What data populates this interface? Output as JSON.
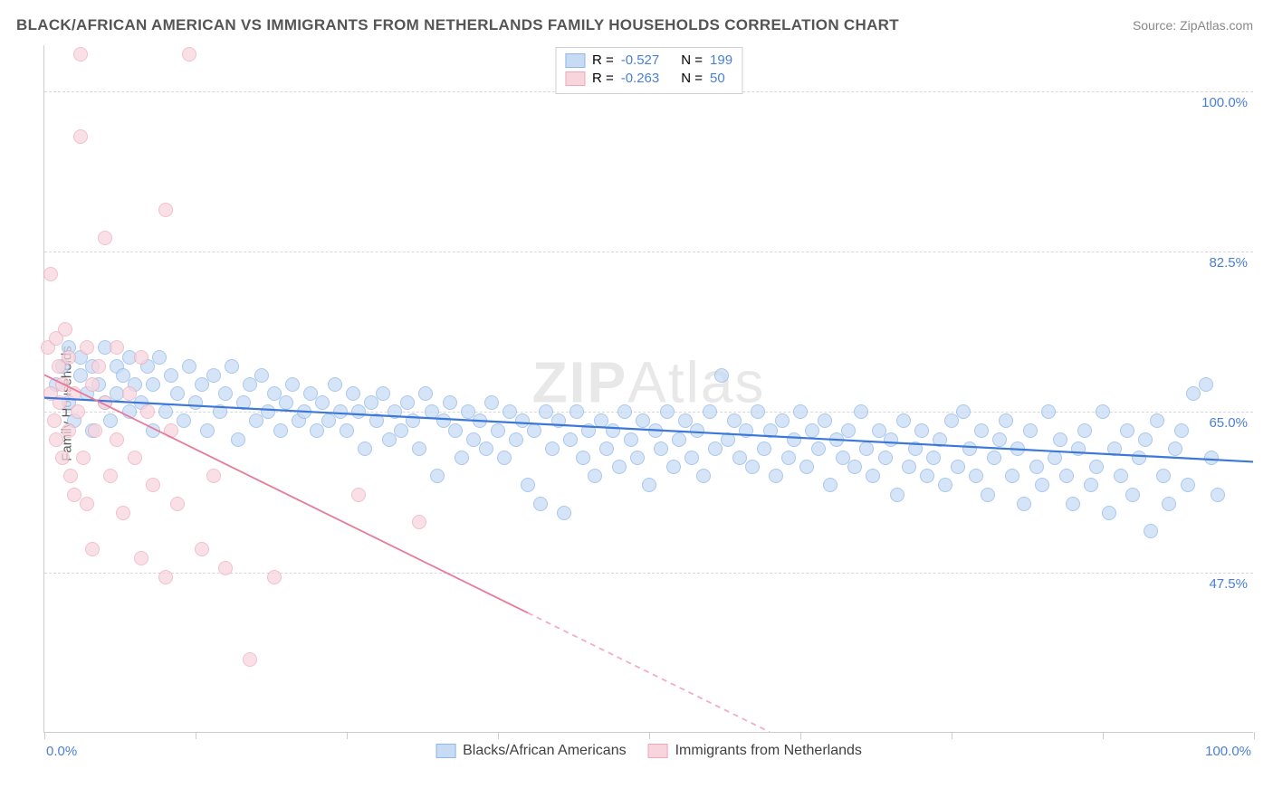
{
  "title": "BLACK/AFRICAN AMERICAN VS IMMIGRANTS FROM NETHERLANDS FAMILY HOUSEHOLDS CORRELATION CHART",
  "source": "Source: ZipAtlas.com",
  "ylabel": "Family Households",
  "watermark_bold": "ZIP",
  "watermark_light": "Atlas",
  "chart": {
    "type": "scatter",
    "xlim": [
      0,
      100
    ],
    "ylim": [
      30,
      105
    ],
    "xtick_positions": [
      0,
      12.5,
      25,
      37.5,
      50,
      62.5,
      75,
      87.5,
      100
    ],
    "xtick_labels": {
      "0": "0.0%",
      "100": "100.0%"
    },
    "ytick_positions": [
      47.5,
      65.0,
      82.5,
      100.0
    ],
    "ytick_labels": [
      "47.5%",
      "65.0%",
      "82.5%",
      "100.0%"
    ],
    "tick_label_color": "#4a7fd6",
    "grid_color": "#d8d8d8",
    "axis_color": "#cccccc",
    "background_color": "#ffffff",
    "marker_radius": 8,
    "marker_stroke_width": 1.5,
    "series": [
      {
        "name": "Blacks/African Americans",
        "fill": "#c7dbf5",
        "stroke": "#8fb6e8",
        "opacity": 0.75,
        "R": -0.527,
        "N": 199,
        "trend": {
          "x1": 0,
          "y1": 66.5,
          "x2": 100,
          "y2": 59.5,
          "color": "#3b78d8",
          "width": 2.2
        },
        "points": [
          [
            1,
            68
          ],
          [
            1.5,
            70
          ],
          [
            2,
            66
          ],
          [
            2,
            72
          ],
          [
            2.5,
            64
          ],
          [
            3,
            69
          ],
          [
            3,
            71
          ],
          [
            3.5,
            67
          ],
          [
            4,
            70
          ],
          [
            4,
            63
          ],
          [
            4.5,
            68
          ],
          [
            5,
            66
          ],
          [
            5,
            72
          ],
          [
            5.5,
            64
          ],
          [
            6,
            70
          ],
          [
            6,
            67
          ],
          [
            6.5,
            69
          ],
          [
            7,
            65
          ],
          [
            7,
            71
          ],
          [
            7.5,
            68
          ],
          [
            8,
            66
          ],
          [
            8.5,
            70
          ],
          [
            9,
            63
          ],
          [
            9,
            68
          ],
          [
            9.5,
            71
          ],
          [
            10,
            65
          ],
          [
            10.5,
            69
          ],
          [
            11,
            67
          ],
          [
            11.5,
            64
          ],
          [
            12,
            70
          ],
          [
            12.5,
            66
          ],
          [
            13,
            68
          ],
          [
            13.5,
            63
          ],
          [
            14,
            69
          ],
          [
            14.5,
            65
          ],
          [
            15,
            67
          ],
          [
            15.5,
            70
          ],
          [
            16,
            62
          ],
          [
            16.5,
            66
          ],
          [
            17,
            68
          ],
          [
            17.5,
            64
          ],
          [
            18,
            69
          ],
          [
            18.5,
            65
          ],
          [
            19,
            67
          ],
          [
            19.5,
            63
          ],
          [
            20,
            66
          ],
          [
            20.5,
            68
          ],
          [
            21,
            64
          ],
          [
            21.5,
            65
          ],
          [
            22,
            67
          ],
          [
            22.5,
            63
          ],
          [
            23,
            66
          ],
          [
            23.5,
            64
          ],
          [
            24,
            68
          ],
          [
            24.5,
            65
          ],
          [
            25,
            63
          ],
          [
            25.5,
            67
          ],
          [
            26,
            65
          ],
          [
            26.5,
            61
          ],
          [
            27,
            66
          ],
          [
            27.5,
            64
          ],
          [
            28,
            67
          ],
          [
            28.5,
            62
          ],
          [
            29,
            65
          ],
          [
            29.5,
            63
          ],
          [
            30,
            66
          ],
          [
            30.5,
            64
          ],
          [
            31,
            61
          ],
          [
            31.5,
            67
          ],
          [
            32,
            65
          ],
          [
            32.5,
            58
          ],
          [
            33,
            64
          ],
          [
            33.5,
            66
          ],
          [
            34,
            63
          ],
          [
            34.5,
            60
          ],
          [
            35,
            65
          ],
          [
            35.5,
            62
          ],
          [
            36,
            64
          ],
          [
            36.5,
            61
          ],
          [
            37,
            66
          ],
          [
            37.5,
            63
          ],
          [
            38,
            60
          ],
          [
            38.5,
            65
          ],
          [
            39,
            62
          ],
          [
            39.5,
            64
          ],
          [
            40,
            57
          ],
          [
            40.5,
            63
          ],
          [
            41,
            55
          ],
          [
            41.5,
            65
          ],
          [
            42,
            61
          ],
          [
            42.5,
            64
          ],
          [
            43,
            54
          ],
          [
            43.5,
            62
          ],
          [
            44,
            65
          ],
          [
            44.5,
            60
          ],
          [
            45,
            63
          ],
          [
            45.5,
            58
          ],
          [
            46,
            64
          ],
          [
            46.5,
            61
          ],
          [
            47,
            63
          ],
          [
            47.5,
            59
          ],
          [
            48,
            65
          ],
          [
            48.5,
            62
          ],
          [
            49,
            60
          ],
          [
            49.5,
            64
          ],
          [
            50,
            57
          ],
          [
            50.5,
            63
          ],
          [
            51,
            61
          ],
          [
            51.5,
            65
          ],
          [
            52,
            59
          ],
          [
            52.5,
            62
          ],
          [
            53,
            64
          ],
          [
            53.5,
            60
          ],
          [
            54,
            63
          ],
          [
            54.5,
            58
          ],
          [
            55,
            65
          ],
          [
            55.5,
            61
          ],
          [
            56,
            69
          ],
          [
            56.5,
            62
          ],
          [
            57,
            64
          ],
          [
            57.5,
            60
          ],
          [
            58,
            63
          ],
          [
            58.5,
            59
          ],
          [
            59,
            65
          ],
          [
            59.5,
            61
          ],
          [
            60,
            63
          ],
          [
            60.5,
            58
          ],
          [
            61,
            64
          ],
          [
            61.5,
            60
          ],
          [
            62,
            62
          ],
          [
            62.5,
            65
          ],
          [
            63,
            59
          ],
          [
            63.5,
            63
          ],
          [
            64,
            61
          ],
          [
            64.5,
            64
          ],
          [
            65,
            57
          ],
          [
            65.5,
            62
          ],
          [
            66,
            60
          ],
          [
            66.5,
            63
          ],
          [
            67,
            59
          ],
          [
            67.5,
            65
          ],
          [
            68,
            61
          ],
          [
            68.5,
            58
          ],
          [
            69,
            63
          ],
          [
            69.5,
            60
          ],
          [
            70,
            62
          ],
          [
            70.5,
            56
          ],
          [
            71,
            64
          ],
          [
            71.5,
            59
          ],
          [
            72,
            61
          ],
          [
            72.5,
            63
          ],
          [
            73,
            58
          ],
          [
            73.5,
            60
          ],
          [
            74,
            62
          ],
          [
            74.5,
            57
          ],
          [
            75,
            64
          ],
          [
            75.5,
            59
          ],
          [
            76,
            65
          ],
          [
            76.5,
            61
          ],
          [
            77,
            58
          ],
          [
            77.5,
            63
          ],
          [
            78,
            56
          ],
          [
            78.5,
            60
          ],
          [
            79,
            62
          ],
          [
            79.5,
            64
          ],
          [
            80,
            58
          ],
          [
            80.5,
            61
          ],
          [
            81,
            55
          ],
          [
            81.5,
            63
          ],
          [
            82,
            59
          ],
          [
            82.5,
            57
          ],
          [
            83,
            65
          ],
          [
            83.5,
            60
          ],
          [
            84,
            62
          ],
          [
            84.5,
            58
          ],
          [
            85,
            55
          ],
          [
            85.5,
            61
          ],
          [
            86,
            63
          ],
          [
            86.5,
            57
          ],
          [
            87,
            59
          ],
          [
            87.5,
            65
          ],
          [
            88,
            54
          ],
          [
            88.5,
            61
          ],
          [
            89,
            58
          ],
          [
            89.5,
            63
          ],
          [
            90,
            56
          ],
          [
            90.5,
            60
          ],
          [
            91,
            62
          ],
          [
            91.5,
            52
          ],
          [
            92,
            64
          ],
          [
            92.5,
            58
          ],
          [
            93,
            55
          ],
          [
            93.5,
            61
          ],
          [
            94,
            63
          ],
          [
            94.5,
            57
          ],
          [
            95,
            67
          ],
          [
            96,
            68
          ],
          [
            96.5,
            60
          ],
          [
            97,
            56
          ]
        ]
      },
      {
        "name": "Immigrants from Netherlands",
        "fill": "#f8d5dd",
        "stroke": "#f0a8b8",
        "opacity": 0.72,
        "R": -0.263,
        "N": 50,
        "trend": {
          "x1": 0,
          "y1": 69,
          "x2": 60,
          "y2": 30,
          "x3": 100,
          "y3": 4,
          "dash_from": 40,
          "color": "#e87a9a",
          "width": 1.8
        },
        "points": [
          [
            0.3,
            72
          ],
          [
            0.5,
            67
          ],
          [
            0.5,
            80
          ],
          [
            0.8,
            64
          ],
          [
            1,
            73
          ],
          [
            1,
            62
          ],
          [
            1.2,
            70
          ],
          [
            1.3,
            66
          ],
          [
            1.5,
            68
          ],
          [
            1.5,
            60
          ],
          [
            1.7,
            74
          ],
          [
            2,
            63
          ],
          [
            2,
            71
          ],
          [
            2.2,
            58
          ],
          [
            2.5,
            67
          ],
          [
            2.5,
            56
          ],
          [
            2.8,
            65
          ],
          [
            3,
            104
          ],
          [
            3,
            95
          ],
          [
            3.2,
            60
          ],
          [
            3.5,
            72
          ],
          [
            3.5,
            55
          ],
          [
            4,
            68
          ],
          [
            4,
            50
          ],
          [
            4.2,
            63
          ],
          [
            4.5,
            70
          ],
          [
            5,
            66
          ],
          [
            5,
            84
          ],
          [
            5.5,
            58
          ],
          [
            6,
            62
          ],
          [
            6,
            72
          ],
          [
            6.5,
            54
          ],
          [
            7,
            67
          ],
          [
            7.5,
            60
          ],
          [
            8,
            71
          ],
          [
            8,
            49
          ],
          [
            8.5,
            65
          ],
          [
            9,
            57
          ],
          [
            10,
            87
          ],
          [
            10,
            47
          ],
          [
            10.5,
            63
          ],
          [
            11,
            55
          ],
          [
            12,
            104
          ],
          [
            13,
            50
          ],
          [
            14,
            58
          ],
          [
            15,
            48
          ],
          [
            17,
            38
          ],
          [
            19,
            47
          ],
          [
            26,
            56
          ],
          [
            31,
            53
          ]
        ]
      }
    ]
  },
  "legend_top": {
    "r_label": "R =",
    "n_label": "N =",
    "value_color": "#4a7fd6",
    "text_color": "#404040"
  },
  "legend_bottom": {
    "text_color": "#404040"
  }
}
